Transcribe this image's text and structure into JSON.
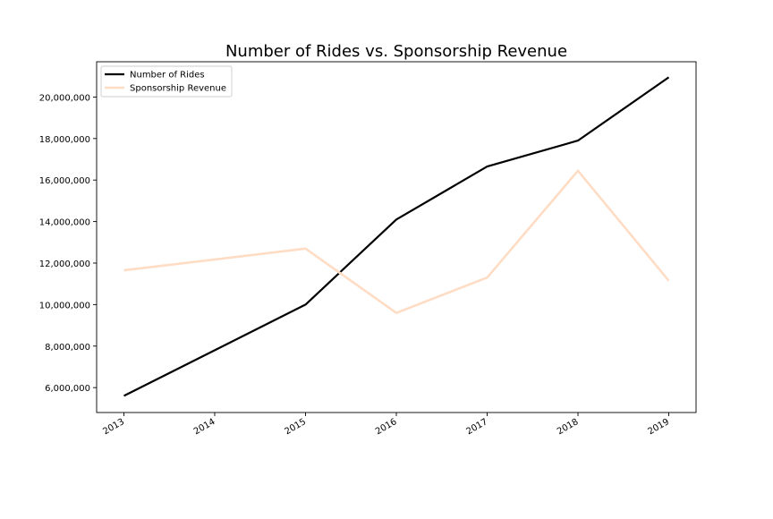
{
  "chart_data": {
    "type": "line",
    "title": "Number of Rides vs. Sponsorship Revenue",
    "xlabel": "",
    "ylabel": "",
    "x": [
      "2013",
      "2014",
      "2015",
      "2016",
      "2017",
      "2018",
      "2019"
    ],
    "x_values": [
      2013,
      2014,
      2015,
      2016,
      2017,
      2018,
      2019
    ],
    "ylim": [
      4800000,
      21700000
    ],
    "y_ticks": [
      6000000,
      8000000,
      10000000,
      12000000,
      14000000,
      16000000,
      18000000,
      20000000
    ],
    "y_tick_labels": [
      "6,000,000",
      "8,000,000",
      "10,000,000",
      "12,000,000",
      "14,000,000",
      "16,000,000",
      "18,000,000",
      "20,000,000"
    ],
    "grid": false,
    "legend_position": "top-left",
    "series": [
      {
        "name": "Number of Rides",
        "color": "#000000",
        "x": [
          2013,
          2015,
          2016,
          2017,
          2018,
          2019
        ],
        "values": [
          5600000,
          10000000,
          14100000,
          16650000,
          17900000,
          20950000
        ]
      },
      {
        "name": "Sponsorship Revenue",
        "color": "#ffdcc4",
        "x": [
          2013,
          2015,
          2016,
          2017,
          2018,
          2019
        ],
        "values": [
          11650000,
          12700000,
          9600000,
          11300000,
          16450000,
          11150000
        ]
      }
    ]
  }
}
